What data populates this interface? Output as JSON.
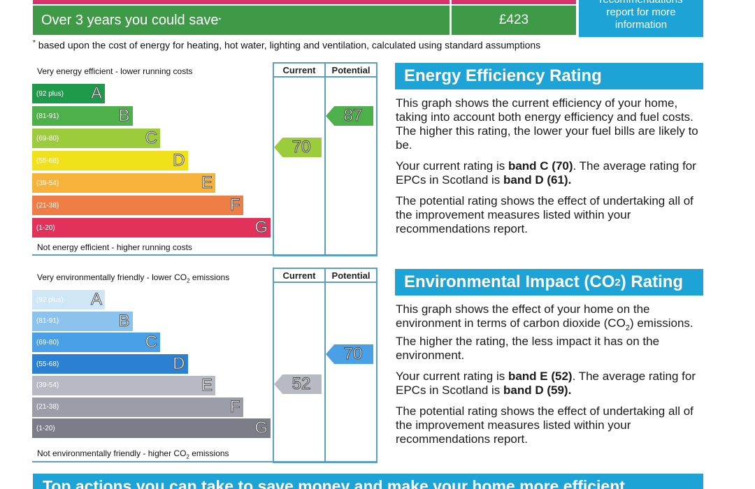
{
  "savings": {
    "label": "Over 3 years you could save",
    "asterisk": "*",
    "amount": "£423",
    "info_line1": "recommendations",
    "info_line2": "report for more",
    "info_line3": "information",
    "footnote_mark": "*",
    "footnote": "based upon the cost of energy for heating, hot water, lighting and ventilation, calculated using standard assumptions"
  },
  "energy_chart": {
    "top_label": "Very energy efficient - lower running costs",
    "bottom_label": "Not energy efficient - higher running costs",
    "col_current": "Current",
    "col_potential": "Potential",
    "bands": [
      {
        "range": "(92 plus)",
        "letter": "A",
        "color": "#1f9a4a"
      },
      {
        "range": "(81-91)",
        "letter": "B",
        "color": "#4db04a"
      },
      {
        "range": "(69-80)",
        "letter": "C",
        "color": "#9ccb3b"
      },
      {
        "range": "(55-68)",
        "letter": "D",
        "color": "#f1e11a"
      },
      {
        "range": "(39-54)",
        "letter": "E",
        "color": "#f7b23b"
      },
      {
        "range": "(21-38)",
        "letter": "F",
        "color": "#ef7d46"
      },
      {
        "range": "(1-20)",
        "letter": "G",
        "color": "#e2325b"
      }
    ],
    "current": {
      "value": "70",
      "band": "C",
      "color": "#9ccb3b"
    },
    "potential": {
      "value": "87",
      "band": "B",
      "color": "#4db04a"
    }
  },
  "energy_text": {
    "heading": "Energy Efficiency Rating",
    "p1": "This graph shows the current efficiency of your home, taking into account both energy efficiency and fuel costs. The higher this rating, the lower your fuel bills are likely to be.",
    "p2_a": "Your current rating is ",
    "p2_b": "band C (70)",
    "p2_c": ". The average rating for EPCs in Scotland is ",
    "p2_d": "band D (61).",
    "p3": "The potential rating shows the effect of undertaking all of the improvement measures listed within your recommendations report."
  },
  "env_chart": {
    "top_label_a": "Very environmentally friendly - lower CO",
    "top_label_sub": "2",
    "top_label_b": " emissions",
    "bottom_label_a": "Not environmentally friendly - higher CO",
    "bottom_label_sub": "2",
    "bottom_label_b": " emissions",
    "col_current": "Current",
    "col_potential": "Potential",
    "bands": [
      {
        "range": "(92 plus)",
        "letter": "A",
        "color": "#cfe6f7"
      },
      {
        "range": "(81-91)",
        "letter": "B",
        "color": "#8cc2ee"
      },
      {
        "range": "(69-80)",
        "letter": "C",
        "color": "#4aa0e6"
      },
      {
        "range": "(55-68)",
        "letter": "D",
        "color": "#2c80d4"
      },
      {
        "range": "(39-54)",
        "letter": "E",
        "color": "#b7b9c3"
      },
      {
        "range": "(21-38)",
        "letter": "F",
        "color": "#9b9ea8"
      },
      {
        "range": "(1-20)",
        "letter": "G",
        "color": "#7b7e89"
      }
    ],
    "current": {
      "value": "52",
      "band": "E",
      "color": "#b7b9c3"
    },
    "potential": {
      "value": "70",
      "band": "C",
      "color": "#4aa0e6"
    }
  },
  "env_text": {
    "heading_a": "Environmental Impact (CO",
    "heading_sub": "2",
    "heading_b": ") Rating",
    "p1_a": "This graph shows the effect of your home on the environment in terms of carbon dioxide (CO",
    "p1_sub": "2",
    "p1_b": ") emissions. The higher the rating, the less impact it has on the environment.",
    "p2_a": "Your current rating is ",
    "p2_b": "band E (52)",
    "p2_c": ". The average rating for EPCs in Scotland is ",
    "p2_d": "band D (59).",
    "p3": "The potential rating shows the effect of undertaking all of the improvement measures listed within your recommendations report."
  },
  "bottom": {
    "heading": "Top actions you can take to save money and make your home more efficient"
  }
}
